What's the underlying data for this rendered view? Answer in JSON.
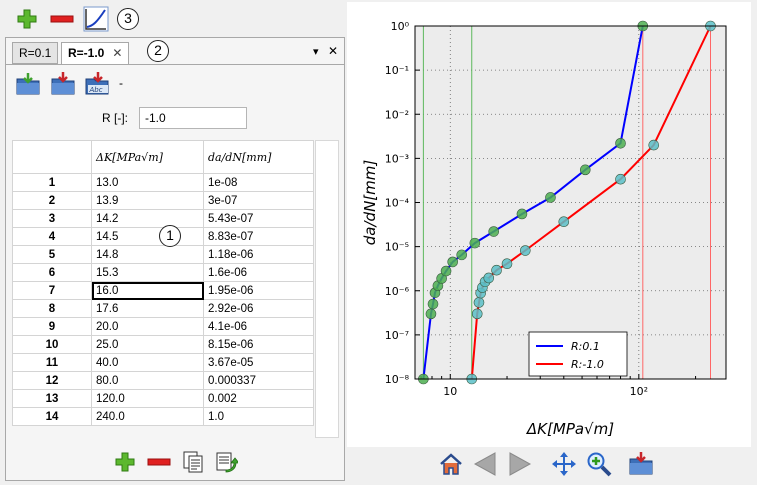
{
  "toolbar": {
    "items": [
      {
        "icon": "plus-icon",
        "label": "Add dataset"
      },
      {
        "icon": "minus-icon",
        "label": "Remove dataset"
      },
      {
        "icon": "curve-icon",
        "label": "Plot"
      }
    ]
  },
  "callouts": [
    "1",
    "2",
    "3"
  ],
  "tabs": [
    {
      "label": "R=0.1",
      "active": false
    },
    {
      "label": "R=-1.0",
      "active": true,
      "close": "✕"
    }
  ],
  "panel_controls": {
    "menu": "▾",
    "close": "✕"
  },
  "file_buttons": {
    "extra": "-"
  },
  "r_field": {
    "label": "R [-]:",
    "value": "-1.0"
  },
  "table": {
    "headers": [
      "ΔK[MPa√m]",
      "da/dN[mm]"
    ],
    "rows": [
      [
        "1",
        "13.0",
        "1e-08"
      ],
      [
        "2",
        "13.9",
        "3e-07"
      ],
      [
        "3",
        "14.2",
        "5.43e-07"
      ],
      [
        "4",
        "14.5",
        "8.83e-07"
      ],
      [
        "5",
        "14.8",
        "1.18e-06"
      ],
      [
        "6",
        "15.3",
        "1.6e-06"
      ],
      [
        "7",
        "16.0",
        "1.95e-06"
      ],
      [
        "8",
        "17.6",
        "2.92e-06"
      ],
      [
        "9",
        "20.0",
        "4.1e-06"
      ],
      [
        "10",
        "25.0",
        "8.15e-06"
      ],
      [
        "11",
        "40.0",
        "3.67e-05"
      ],
      [
        "12",
        "80.0",
        "0.000337"
      ],
      [
        "13",
        "120.0",
        "0.002"
      ],
      [
        "14",
        "240.0",
        "1.0"
      ]
    ],
    "selected_row": 6
  },
  "chart_data": {
    "type": "line",
    "xscale": "log",
    "yscale": "log",
    "xlim": [
      6.5,
      290
    ],
    "ylim": [
      1e-08,
      1
    ],
    "xlabel": "ΔK[MPa√m]",
    "ylabel": "da/dN[mm]",
    "xticks": [
      {
        "v": 10,
        "label": "10"
      },
      {
        "v": 100,
        "label": "10²"
      }
    ],
    "yticks": [
      {
        "v": 1,
        "label": "10⁰"
      },
      {
        "v": 0.1,
        "label": "10⁻¹"
      },
      {
        "v": 0.01,
        "label": "10⁻²"
      },
      {
        "v": 0.001,
        "label": "10⁻³"
      },
      {
        "v": 0.0001,
        "label": "10⁻⁴"
      },
      {
        "v": 1e-05,
        "label": "10⁻⁵"
      },
      {
        "v": 1e-06,
        "label": "10⁻⁶"
      },
      {
        "v": 1e-07,
        "label": "10⁻⁷"
      },
      {
        "v": 1e-08,
        "label": "10⁻⁸"
      }
    ],
    "grid": true,
    "legend": "lower-center",
    "series": [
      {
        "name": "R:0.1",
        "color": "#0000ff",
        "marker_color": "#4caf50",
        "x": [
          7.2,
          7.9,
          8.1,
          8.3,
          8.6,
          9.0,
          9.5,
          10.3,
          11.5,
          13.5,
          17.0,
          24.0,
          34.0,
          52.0,
          80.0,
          105.0
        ],
        "y": [
          1e-08,
          3e-07,
          5e-07,
          9e-07,
          1.3e-06,
          1.9e-06,
          2.8e-06,
          4.5e-06,
          6.5e-06,
          1.2e-05,
          2.2e-05,
          5.5e-05,
          0.00013,
          0.00055,
          0.0022,
          1.0
        ]
      },
      {
        "name": "R:-1.0",
        "color": "#ff0000",
        "marker_color": "#5bc0c8",
        "x": [
          13.0,
          13.9,
          14.2,
          14.5,
          14.8,
          15.3,
          16.0,
          17.6,
          20.0,
          25.0,
          40.0,
          80.0,
          120.0,
          240.0
        ],
        "y": [
          1e-08,
          3e-07,
          5.43e-07,
          8.83e-07,
          1.18e-06,
          1.6e-06,
          1.95e-06,
          2.92e-06,
          4.1e-06,
          8.15e-06,
          3.67e-05,
          0.000337,
          0.002,
          1.0
        ]
      }
    ],
    "vlines": [
      {
        "x": 7.2,
        "color": "#5cb85c"
      },
      {
        "x": 13.0,
        "color": "#5cb85c"
      },
      {
        "x": 105.0,
        "color": "#ff6666"
      },
      {
        "x": 240.0,
        "color": "#ff6666"
      }
    ]
  },
  "nav_toolbar": {
    "items": [
      "home-icon",
      "back-icon",
      "forward-icon",
      "pan-icon",
      "zoom-icon",
      "save-icon"
    ]
  }
}
